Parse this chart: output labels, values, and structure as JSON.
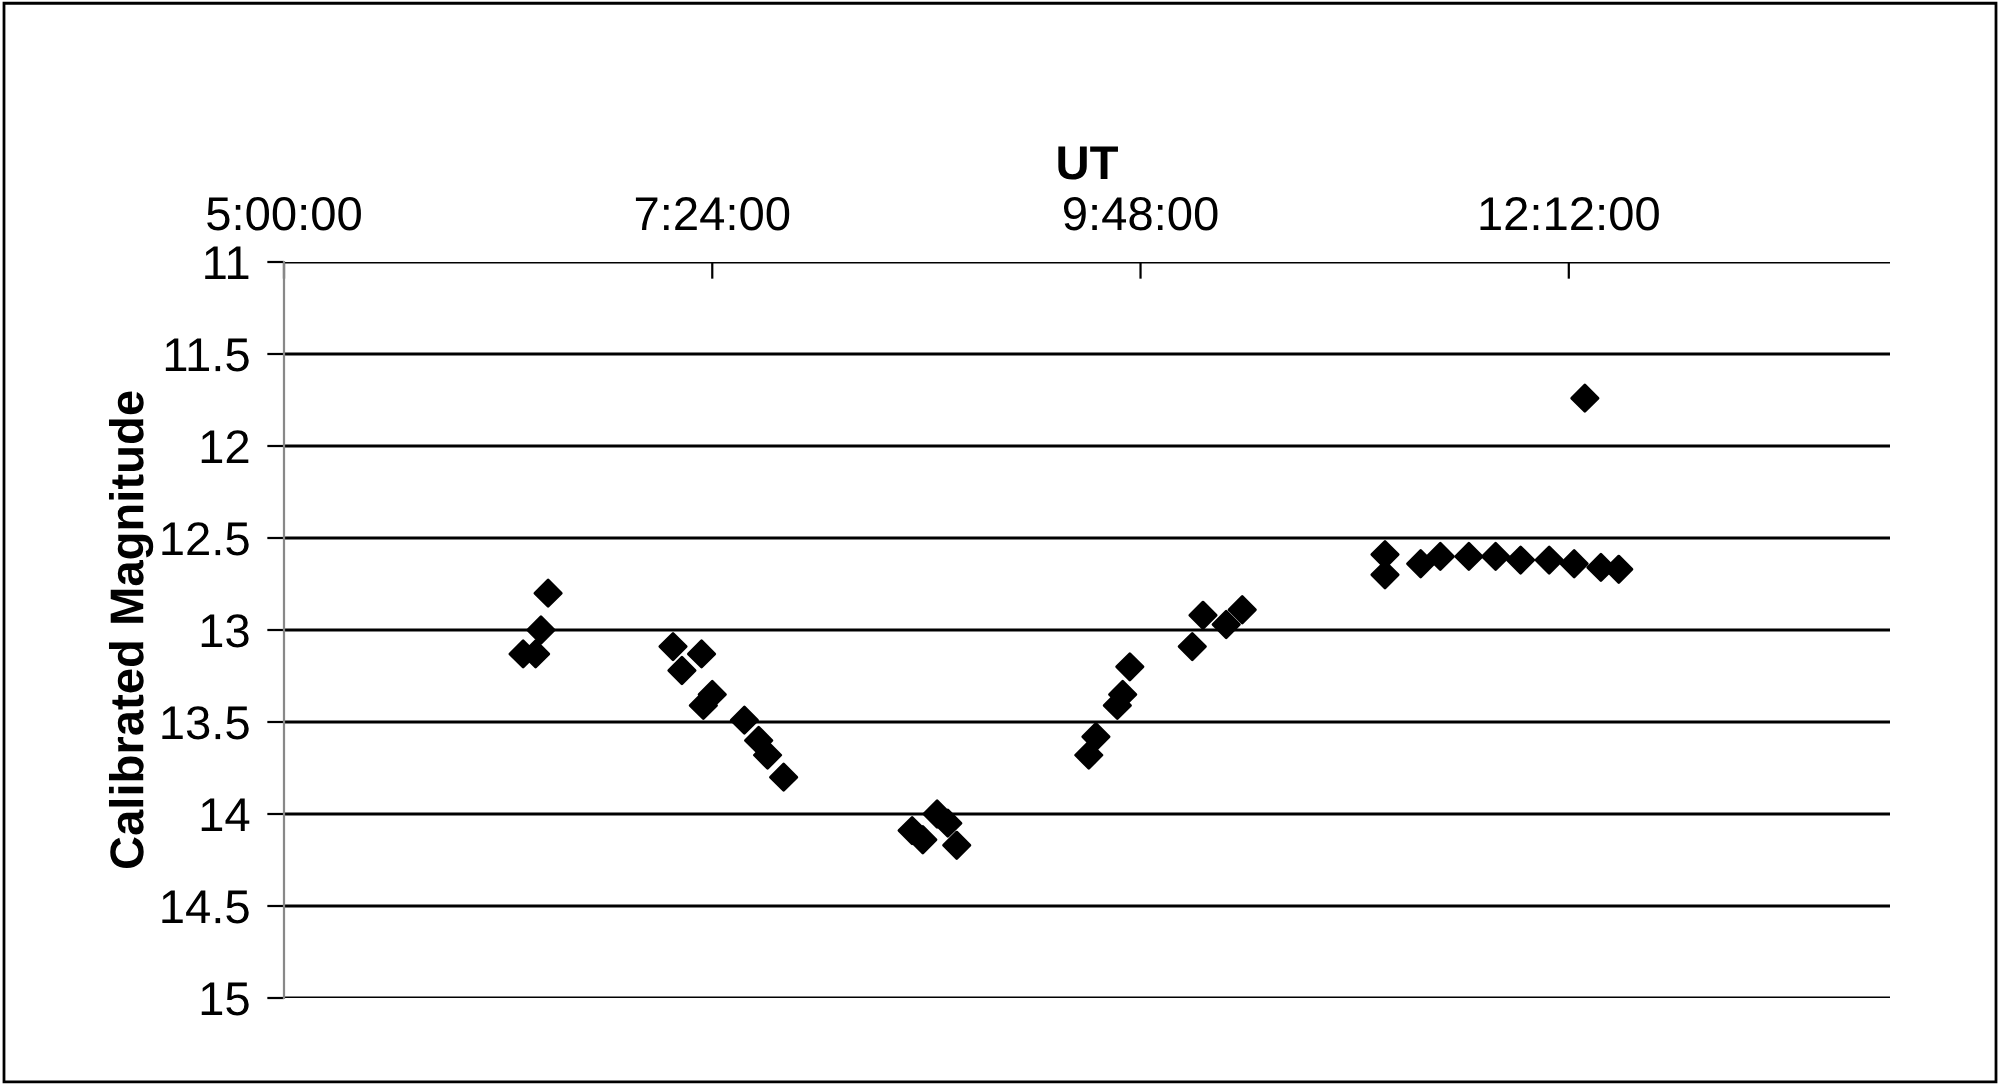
{
  "chart_data": {
    "type": "scatter",
    "xlabel": "UT",
    "ylabel": "Calibrated Magnitude",
    "xlim": [
      5,
      14
    ],
    "xticks": [
      {
        "value": 5,
        "label": "5:00:00"
      },
      {
        "value": 7.4,
        "label": "7:24:00"
      },
      {
        "value": 9.8,
        "label": "9:48:00"
      },
      {
        "value": 12.2,
        "label": "12:12:00"
      }
    ],
    "ylim": [
      15,
      11
    ],
    "yticks": [
      11,
      11.5,
      12,
      12.5,
      13,
      13.5,
      14,
      14.5,
      15
    ],
    "grid": "y",
    "marker": "diamond",
    "legend": false,
    "series": [
      {
        "color": "#000000",
        "x": [
          6.34,
          6.41,
          6.44,
          6.48,
          7.18,
          7.23,
          7.34,
          7.4,
          7.35,
          7.58,
          7.66,
          7.71,
          7.8,
          8.52,
          8.58,
          8.66,
          8.72,
          8.77,
          9.51,
          9.55,
          9.67,
          9.7,
          9.74,
          10.09,
          10.15,
          10.28,
          10.37,
          11.17,
          11.17,
          11.37,
          11.48,
          11.64,
          11.79,
          11.93,
          12.09,
          12.23,
          12.38,
          12.48,
          12.29
        ],
        "values": [
          13.13,
          13.13,
          13.0,
          12.8,
          13.09,
          13.22,
          13.13,
          13.35,
          13.41,
          13.49,
          13.6,
          13.68,
          13.8,
          14.09,
          14.14,
          14.0,
          14.05,
          14.17,
          13.68,
          13.58,
          13.41,
          13.35,
          13.2,
          13.09,
          12.92,
          12.97,
          12.89,
          12.59,
          12.7,
          12.64,
          12.6,
          12.6,
          12.6,
          12.62,
          12.62,
          12.64,
          12.66,
          12.67,
          11.74
        ]
      }
    ]
  }
}
